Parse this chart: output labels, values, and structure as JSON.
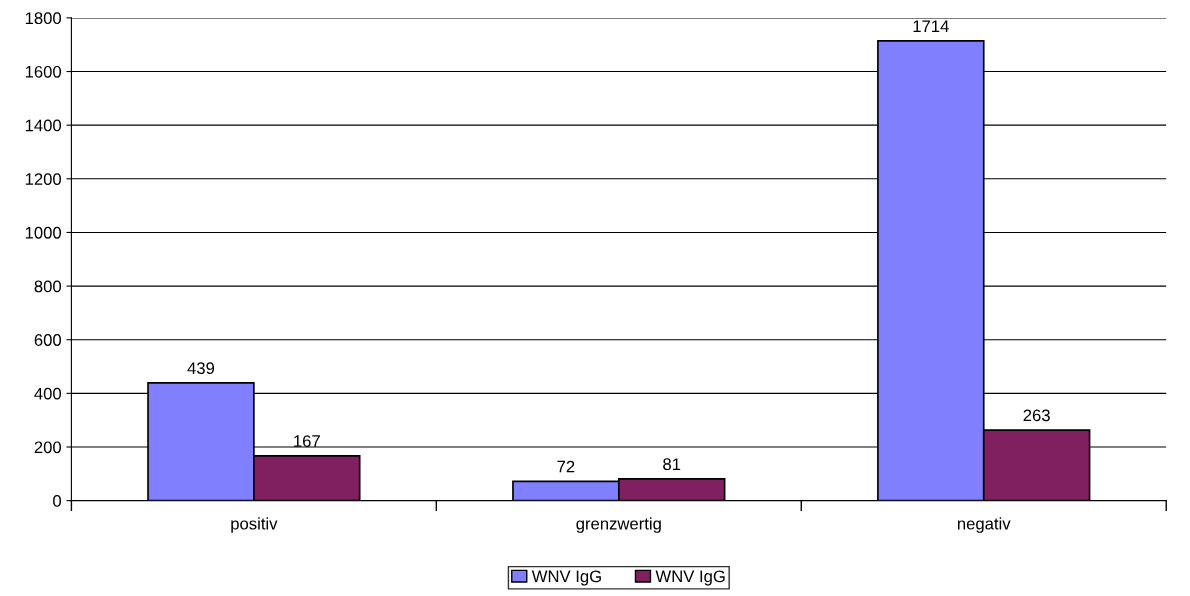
{
  "chart_data": {
    "type": "bar",
    "categories": [
      "positiv",
      "grenzwertig",
      "negativ"
    ],
    "series": [
      {
        "name": "WNV IgG",
        "color": "#8080ff",
        "values": [
          439,
          72,
          1714
        ]
      },
      {
        "name": "WNV IgG",
        "color": "#802060",
        "values": [
          167,
          81,
          263
        ]
      }
    ],
    "ylim": [
      0,
      1800
    ],
    "yticks": [
      0,
      200,
      400,
      600,
      800,
      1000,
      1200,
      1400,
      1600,
      1800
    ],
    "grid": "y",
    "legend": "bottom",
    "data_labels": true
  }
}
